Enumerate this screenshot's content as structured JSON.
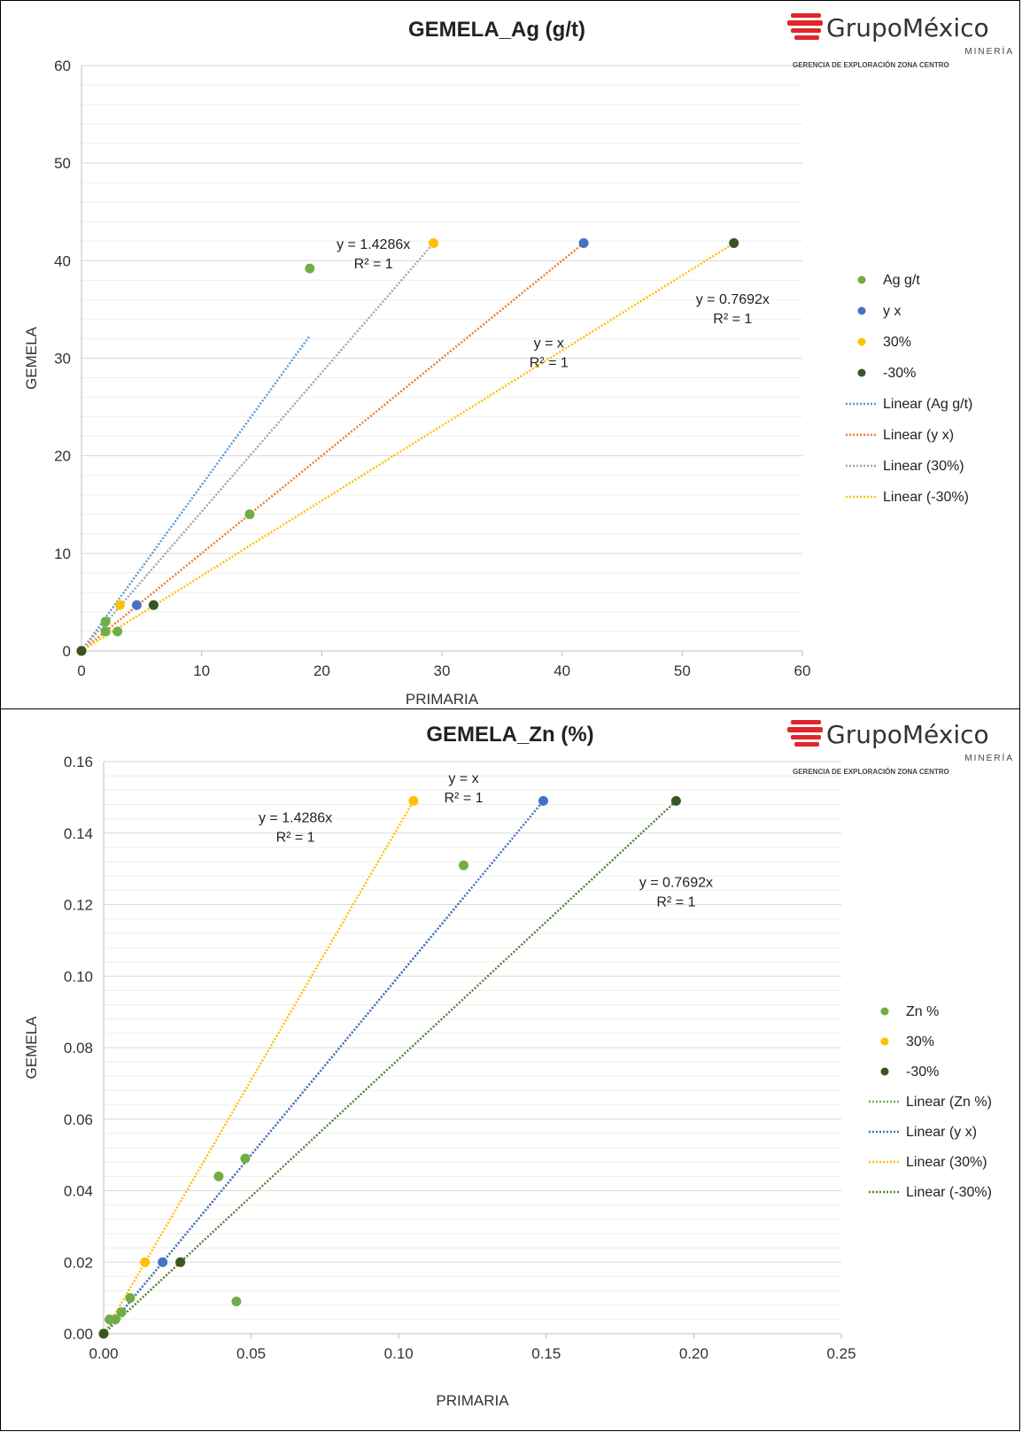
{
  "logo": {
    "name": "GrupoMéxico",
    "sub": "MINERÍA",
    "gerencia": "GERENCIA DE EXPLORACIÓN ZONA CENTRO",
    "color": "#e0252b"
  },
  "chart_data": [
    {
      "type": "scatter",
      "title": "GEMELA_Ag (g/t)",
      "xlabel": "PRIMARIA",
      "ylabel": "GEMELA",
      "xlim": [
        0,
        60
      ],
      "ylim": [
        0,
        60
      ],
      "xticks": [
        "0",
        "10",
        "20",
        "30",
        "40",
        "50",
        "60"
      ],
      "yticks": [
        "0",
        "10",
        "20",
        "30",
        "40",
        "50",
        "60"
      ],
      "grid": true,
      "legend_position": "right",
      "series": [
        {
          "name": "Ag g/t",
          "color": "#70ad47",
          "points": [
            [
              0,
              0
            ],
            [
              2,
              2
            ],
            [
              2,
              3
            ],
            [
              3,
              2
            ],
            [
              14,
              14
            ],
            [
              19,
              39.2
            ]
          ]
        },
        {
          "name": "y x",
          "color": "#4472c4",
          "points": [
            [
              0,
              0
            ],
            [
              4.6,
              4.7
            ],
            [
              41.8,
              41.8
            ]
          ]
        },
        {
          "name": "30%",
          "color": "#ffc000",
          "points": [
            [
              0,
              0
            ],
            [
              3.2,
              4.7
            ],
            [
              29.3,
              41.8
            ]
          ]
        },
        {
          "name": "-30%",
          "color": "#375623",
          "points": [
            [
              0,
              0
            ],
            [
              6,
              4.7
            ],
            [
              54.3,
              41.8
            ]
          ]
        }
      ],
      "trendlines": [
        {
          "name": "Linear (Ag g/t)",
          "color": "#5b9bd5",
          "x": [
            0,
            19
          ],
          "y": [
            0,
            32.3
          ]
        },
        {
          "name": "Linear (y x)",
          "color": "#ed7d31",
          "x": [
            0,
            41.8
          ],
          "y": [
            0,
            41.8
          ]
        },
        {
          "name": "Linear (30%)",
          "color": "#a5a5a5",
          "x": [
            0,
            29.3
          ],
          "y": [
            0,
            41.8
          ]
        },
        {
          "name": "Linear (-30%)",
          "color": "#ffc000",
          "x": [
            0,
            54.3
          ],
          "y": [
            0,
            41.8
          ]
        }
      ],
      "annotations": [
        {
          "lines": [
            "y = 1.4286x",
            "R² = 1"
          ],
          "x": 24.3,
          "y": 41.2
        },
        {
          "lines": [
            "y = x",
            "R² = 1"
          ],
          "x": 38.9,
          "y": 31.1
        },
        {
          "lines": [
            "y = 0.7692x",
            "R² = 1"
          ],
          "x": 54.2,
          "y": 35.6
        }
      ]
    },
    {
      "type": "scatter",
      "title": "GEMELA_Zn (%)",
      "xlabel": "PRIMARIA",
      "ylabel": "GEMELA",
      "xlim": [
        0,
        0.25
      ],
      "ylim": [
        0,
        0.16
      ],
      "xticks": [
        "0.00",
        "0.05",
        "0.10",
        "0.15",
        "0.20",
        "0.25"
      ],
      "yticks": [
        "0.00",
        "0.02",
        "0.04",
        "0.06",
        "0.08",
        "0.10",
        "0.12",
        "0.14",
        "0.16"
      ],
      "grid": true,
      "legend_position": "right",
      "series": [
        {
          "name": "Zn  %",
          "color": "#70ad47",
          "points": [
            [
              0,
              0
            ],
            [
              0.002,
              0.004
            ],
            [
              0.004,
              0.004
            ],
            [
              0.006,
              0.006
            ],
            [
              0.009,
              0.01
            ],
            [
              0.039,
              0.044
            ],
            [
              0.048,
              0.049
            ],
            [
              0.045,
              0.009
            ],
            [
              0.122,
              0.131
            ]
          ]
        },
        {
          "name": "y x",
          "color": "#4472c4",
          "points": [
            [
              0.02,
              0.02
            ],
            [
              0.149,
              0.149
            ]
          ],
          "in_legend": false
        },
        {
          "name": "30%",
          "color": "#ffc000",
          "points": [
            [
              0.014,
              0.02
            ],
            [
              0.105,
              0.149
            ]
          ]
        },
        {
          "name": "-30%",
          "color": "#375623",
          "points": [
            [
              0,
              0
            ],
            [
              0.026,
              0.02
            ],
            [
              0.194,
              0.149
            ]
          ]
        }
      ],
      "trendlines": [
        {
          "name": "Linear (Zn  %)",
          "color": "#70ad47",
          "x": [
            0,
            0.122
          ],
          "y": [
            0,
            0.122
          ]
        },
        {
          "name": "Linear (y x)",
          "color": "#4472c4",
          "x": [
            0,
            0.149
          ],
          "y": [
            0,
            0.149
          ]
        },
        {
          "name": "Linear (30%)",
          "color": "#ffc000",
          "x": [
            0,
            0.105
          ],
          "y": [
            0,
            0.149
          ]
        },
        {
          "name": "Linear (-30%)",
          "color": "#548235",
          "x": [
            0,
            0.194
          ],
          "y": [
            0,
            0.149
          ]
        }
      ],
      "annotations": [
        {
          "lines": [
            "y = 1.4286x",
            "R² = 1"
          ],
          "x": 0.065,
          "y": 0.143
        },
        {
          "lines": [
            "y = x",
            "R² = 1"
          ],
          "x": 0.122,
          "y": 0.154
        },
        {
          "lines": [
            "y = 0.7692x",
            "R² = 1"
          ],
          "x": 0.194,
          "y": 0.125
        }
      ]
    }
  ]
}
